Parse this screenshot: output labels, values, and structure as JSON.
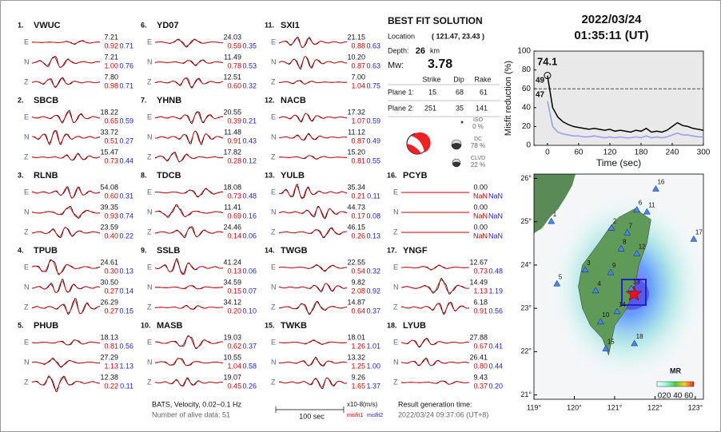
{
  "header": {
    "date": "2022/03/24",
    "time": "01:35:11  (UT)"
  },
  "stations": [
    {
      "num": "1.",
      "name": "VWUC",
      "rows": [
        {
          "comp": "E",
          "amp": "7.21",
          "misfit1": "0.92",
          "misfit2": "0.71"
        },
        {
          "comp": "N",
          "amp": "7.21",
          "misfit1": "1.00",
          "misfit2": "0.76"
        },
        {
          "comp": "Z",
          "amp": "7.80",
          "misfit1": "0.98",
          "misfit2": "0.71"
        }
      ]
    },
    {
      "num": "2.",
      "name": "SBCB",
      "rows": [
        {
          "comp": "E",
          "amp": "18.22",
          "misfit1": "0.65",
          "misfit2": "0.59"
        },
        {
          "comp": "N",
          "amp": "33.72",
          "misfit1": "0.51",
          "misfit2": "0.27"
        },
        {
          "comp": "Z",
          "amp": "15.47",
          "misfit1": "0.73",
          "misfit2": "0.44"
        }
      ]
    },
    {
      "num": "3.",
      "name": "RLNB",
      "rows": [
        {
          "comp": "E",
          "amp": "54.08",
          "misfit1": "0.60",
          "misfit2": "0.31"
        },
        {
          "comp": "N",
          "amp": "39.35",
          "misfit1": "0.93",
          "misfit2": "0.74"
        },
        {
          "comp": "Z",
          "amp": "23.59",
          "misfit1": "0.40",
          "misfit2": "0.22"
        }
      ]
    },
    {
      "num": "4.",
      "name": "TPUB",
      "rows": [
        {
          "comp": "E",
          "amp": "24.61",
          "misfit1": "0.30",
          "misfit2": "0.13"
        },
        {
          "comp": "N",
          "amp": "30.50",
          "misfit1": "0.27",
          "misfit2": "0.14"
        },
        {
          "comp": "Z",
          "amp": "26.29",
          "misfit1": "0.27",
          "misfit2": "0.15"
        }
      ]
    },
    {
      "num": "5.",
      "name": "PHUB",
      "rows": [
        {
          "comp": "E",
          "amp": "18.13",
          "misfit1": "0.81",
          "misfit2": "0.56"
        },
        {
          "comp": "N",
          "amp": "27.29",
          "misfit1": "1.13",
          "misfit2": "1.13"
        },
        {
          "comp": "Z",
          "amp": "12.38",
          "misfit1": "0.22",
          "misfit2": "0.11"
        }
      ]
    },
    {
      "num": "6.",
      "name": "YD07",
      "rows": [
        {
          "comp": "E",
          "amp": "24.03",
          "misfit1": "0.59",
          "misfit2": "0.35"
        },
        {
          "comp": "N",
          "amp": "11.49",
          "misfit1": "0.78",
          "misfit2": "0.53"
        },
        {
          "comp": "Z",
          "amp": "12.51",
          "misfit1": "0.60",
          "misfit2": "0.32"
        }
      ]
    },
    {
      "num": "7.",
      "name": "YHNB",
      "rows": [
        {
          "comp": "E",
          "amp": "20.55",
          "misfit1": "0.39",
          "misfit2": "0.21"
        },
        {
          "comp": "N",
          "amp": "11.48",
          "misfit1": "0.91",
          "misfit2": "0.43"
        },
        {
          "comp": "Z",
          "amp": "17.82",
          "misfit1": "0.28",
          "misfit2": "0.12"
        }
      ]
    },
    {
      "num": "8.",
      "name": "TDCB",
      "rows": [
        {
          "comp": "E",
          "amp": "18.08",
          "misfit1": "0.73",
          "misfit2": "0.48"
        },
        {
          "comp": "N",
          "amp": "11.41",
          "misfit1": "0.69",
          "misfit2": "0.16"
        },
        {
          "comp": "Z",
          "amp": "24.46",
          "misfit1": "0.14",
          "misfit2": "0.06"
        }
      ]
    },
    {
      "num": "9.",
      "name": "SSLB",
      "rows": [
        {
          "comp": "E",
          "amp": "41.24",
          "misfit1": "0.13",
          "misfit2": "0.06"
        },
        {
          "comp": "N",
          "amp": "34.59",
          "misfit1": "0.15",
          "misfit2": "0.07"
        },
        {
          "comp": "Z",
          "amp": "34.12",
          "misfit1": "0.20",
          "misfit2": "0.10"
        }
      ]
    },
    {
      "num": "10.",
      "name": "MASB",
      "rows": [
        {
          "comp": "E",
          "amp": "19.03",
          "misfit1": "0.62",
          "misfit2": "0.37"
        },
        {
          "comp": "N",
          "amp": "10.55",
          "misfit1": "1.04",
          "misfit2": "0.58"
        },
        {
          "comp": "Z",
          "amp": "19.07",
          "misfit1": "0.45",
          "misfit2": "0.26"
        }
      ]
    },
    {
      "num": "11.",
      "name": "SXI1",
      "rows": [
        {
          "comp": "E",
          "amp": "21.15",
          "misfit1": "0.88",
          "misfit2": "0.63"
        },
        {
          "comp": "N",
          "amp": "10.20",
          "misfit1": "0.87",
          "misfit2": "0.63"
        },
        {
          "comp": "Z",
          "amp": "7.00",
          "misfit1": "1.04",
          "misfit2": "0.75"
        }
      ]
    },
    {
      "num": "12.",
      "name": "NACB",
      "rows": [
        {
          "comp": "E",
          "amp": "17.32",
          "misfit1": "1.07",
          "misfit2": "0.59"
        },
        {
          "comp": "N",
          "amp": "11.12",
          "misfit1": "0.87",
          "misfit2": "0.49"
        },
        {
          "comp": "Z",
          "amp": "15.20",
          "misfit1": "0.81",
          "misfit2": "0.55"
        }
      ]
    },
    {
      "num": "13.",
      "name": "YULB",
      "rows": [
        {
          "comp": "E",
          "amp": "35.34",
          "misfit1": "0.21",
          "misfit2": "0.11"
        },
        {
          "comp": "N",
          "amp": "44.73",
          "misfit1": "0.17",
          "misfit2": "0.08"
        },
        {
          "comp": "Z",
          "amp": "46.15",
          "misfit1": "0.26",
          "misfit2": "0.13"
        }
      ]
    },
    {
      "num": "14.",
      "name": "TWGB",
      "rows": [
        {
          "comp": "E",
          "amp": "22.55",
          "misfit1": "0.54",
          "misfit2": "0.32"
        },
        {
          "comp": "N",
          "amp": "9.82",
          "misfit1": "2.08",
          "misfit2": "0.92"
        },
        {
          "comp": "Z",
          "amp": "14.87",
          "misfit1": "0.64",
          "misfit2": "0.37"
        }
      ]
    },
    {
      "num": "15.",
      "name": "TWKB",
      "rows": [
        {
          "comp": "E",
          "amp": "18.01",
          "misfit1": "1.26",
          "misfit2": "1.01"
        },
        {
          "comp": "N",
          "amp": "13.32",
          "misfit1": "1.25",
          "misfit2": "1.00"
        },
        {
          "comp": "Z",
          "amp": "9.26",
          "misfit1": "1.65",
          "misfit2": "1.37"
        }
      ]
    },
    {
      "num": "16.",
      "name": "PCYB",
      "rows": [
        {
          "comp": "E",
          "amp": "0.00",
          "misfit1": "NaN",
          "misfit2": "NaN"
        },
        {
          "comp": "N",
          "amp": "0.00",
          "misfit1": "NaN",
          "misfit2": "NaN"
        },
        {
          "comp": "Z",
          "amp": "0.00",
          "misfit1": "NaN",
          "misfit2": "NaN"
        }
      ]
    },
    {
      "num": "17.",
      "name": "YNGF",
      "rows": [
        {
          "comp": "E",
          "amp": "12.67",
          "misfit1": "0.73",
          "misfit2": "0.48"
        },
        {
          "comp": "N",
          "amp": "14.49",
          "misfit1": "1.13",
          "misfit2": "1.19"
        },
        {
          "comp": "Z",
          "amp": "6.18",
          "misfit1": "0.91",
          "misfit2": "0.56"
        }
      ]
    },
    {
      "num": "18.",
      "name": "LYUB",
      "rows": [
        {
          "comp": "E",
          "amp": "27.88",
          "misfit1": "0.67",
          "misfit2": "0.41"
        },
        {
          "comp": "N",
          "amp": "26.41",
          "misfit1": "0.80",
          "misfit2": "0.44"
        },
        {
          "comp": "Z",
          "amp": "9.43",
          "misfit1": "0.37",
          "misfit2": "0.20"
        }
      ]
    }
  ],
  "solution": {
    "title": "BEST FIT SOLUTION",
    "location_label": "Location",
    "location": "( 121.47, 23.43 )",
    "depth_label": "Depth:",
    "depth": "26",
    "depth_unit": "km",
    "mw_label": "Mw:",
    "mw": "3.78",
    "columns": [
      "Strike",
      "Dip",
      "Rake"
    ],
    "planes": [
      {
        "label": "Plane 1:",
        "values": [
          "15",
          "68",
          "61"
        ]
      },
      {
        "label": "Plane 2:",
        "values": [
          "251",
          "35",
          "141"
        ]
      }
    ],
    "components": [
      {
        "name": "ISO",
        "percent": "0 %"
      },
      {
        "name": "DC",
        "percent": "78 %"
      },
      {
        "name": "CLVD",
        "percent": "22 %"
      }
    ]
  },
  "footer": {
    "filter": "BATS, Velocity, 0.02~0.1 Hz",
    "alive": "Number of alive data: 51",
    "scale": "100 sec",
    "units": "x10-8(m/s)",
    "misfit1": "misfit1",
    "misfit2": "misfit2",
    "result_label": "Result generation time:",
    "result_time": "2022/03/24 09:37:06 (UT+8)"
  },
  "chart_data": {
    "type": "line",
    "xlabel": "Time (sec)",
    "ylabel": "Misfit reduction (%)",
    "x": [
      0,
      10,
      20,
      30,
      40,
      50,
      60,
      70,
      80,
      90,
      100,
      110,
      120,
      130,
      140,
      150,
      160,
      170,
      180,
      190,
      200,
      210,
      220,
      230,
      240,
      250,
      260,
      270,
      280,
      290,
      300
    ],
    "series": [
      {
        "name": "misfit1",
        "color": "#000000",
        "values": [
          74.1,
          40,
          30,
          25,
          22,
          20,
          19,
          18,
          17,
          18,
          17,
          16,
          17,
          15,
          16,
          15,
          14,
          16,
          15,
          18,
          14,
          15,
          14,
          16,
          20,
          24,
          21,
          20,
          18,
          17,
          16
        ]
      },
      {
        "name": "misfit2",
        "color": "#9999ff",
        "values": [
          47,
          20,
          14,
          12,
          11,
          10,
          10,
          9,
          9,
          10,
          9,
          8,
          9,
          8,
          9,
          8,
          8,
          9,
          8,
          10,
          8,
          9,
          8,
          9,
          11,
          13,
          11,
          11,
          10,
          9,
          9
        ]
      }
    ],
    "annotations": [
      {
        "text": "74.1",
        "color": "#e00000"
      },
      {
        "text": "49",
        "color": "#999999"
      },
      {
        "text": "47",
        "color": "#9999ff"
      }
    ],
    "reference_line": 60,
    "xlim": [
      -26,
      300
    ],
    "ylim": [
      0,
      100
    ],
    "xticks": [
      0,
      60,
      120,
      180,
      240,
      300
    ],
    "yticks": [
      0,
      20,
      40,
      60,
      80,
      100
    ]
  },
  "map": {
    "lonlim": [
      119,
      123.2
    ],
    "latlim": [
      20.9,
      26.1
    ],
    "lon_ticks": [
      {
        "value": 119,
        "label": "119°"
      },
      {
        "value": 120,
        "label": "120°"
      },
      {
        "value": 121,
        "label": "121°"
      },
      {
        "value": 122,
        "label": "122°"
      },
      {
        "value": 123,
        "label": "123°"
      }
    ],
    "lat_ticks": [
      {
        "value": 21,
        "label": "21°"
      },
      {
        "value": 22,
        "label": "22°"
      },
      {
        "value": 23,
        "label": "23°"
      },
      {
        "value": 24,
        "label": "24°"
      },
      {
        "value": 25,
        "label": "25°"
      },
      {
        "value": 26,
        "label": "26°"
      }
    ],
    "stations": [
      {
        "label": "1",
        "lon": 119.43,
        "lat": 25.01
      },
      {
        "label": "2",
        "lon": 120.92,
        "lat": 24.86
      },
      {
        "label": "3",
        "lon": 120.27,
        "lat": 23.89
      },
      {
        "label": "4",
        "lon": 120.53,
        "lat": 23.41
      },
      {
        "label": "5",
        "lon": 119.57,
        "lat": 23.57
      },
      {
        "label": "6",
        "lon": 121.55,
        "lat": 25.28
      },
      {
        "label": "7",
        "lon": 121.31,
        "lat": 24.75
      },
      {
        "label": "8",
        "lon": 121.16,
        "lat": 24.38
      },
      {
        "label": "9",
        "lon": 120.9,
        "lat": 23.83
      },
      {
        "label": "10",
        "lon": 120.65,
        "lat": 22.69
      },
      {
        "label": "11",
        "lon": 121.8,
        "lat": 25.23
      },
      {
        "label": "12",
        "lon": 121.55,
        "lat": 24.27
      },
      {
        "label": "13",
        "lon": 121.41,
        "lat": 23.46
      },
      {
        "label": "14",
        "lon": 121.06,
        "lat": 22.93
      },
      {
        "label": "15",
        "lon": 120.78,
        "lat": 22.07
      },
      {
        "label": "16",
        "lon": 122.02,
        "lat": 25.76
      },
      {
        "label": "17",
        "lon": 122.96,
        "lat": 24.6
      },
      {
        "label": "18",
        "lon": 121.49,
        "lat": 22.19
      }
    ],
    "colorbar": {
      "title": "MR",
      "labels": "020 40 60"
    }
  }
}
